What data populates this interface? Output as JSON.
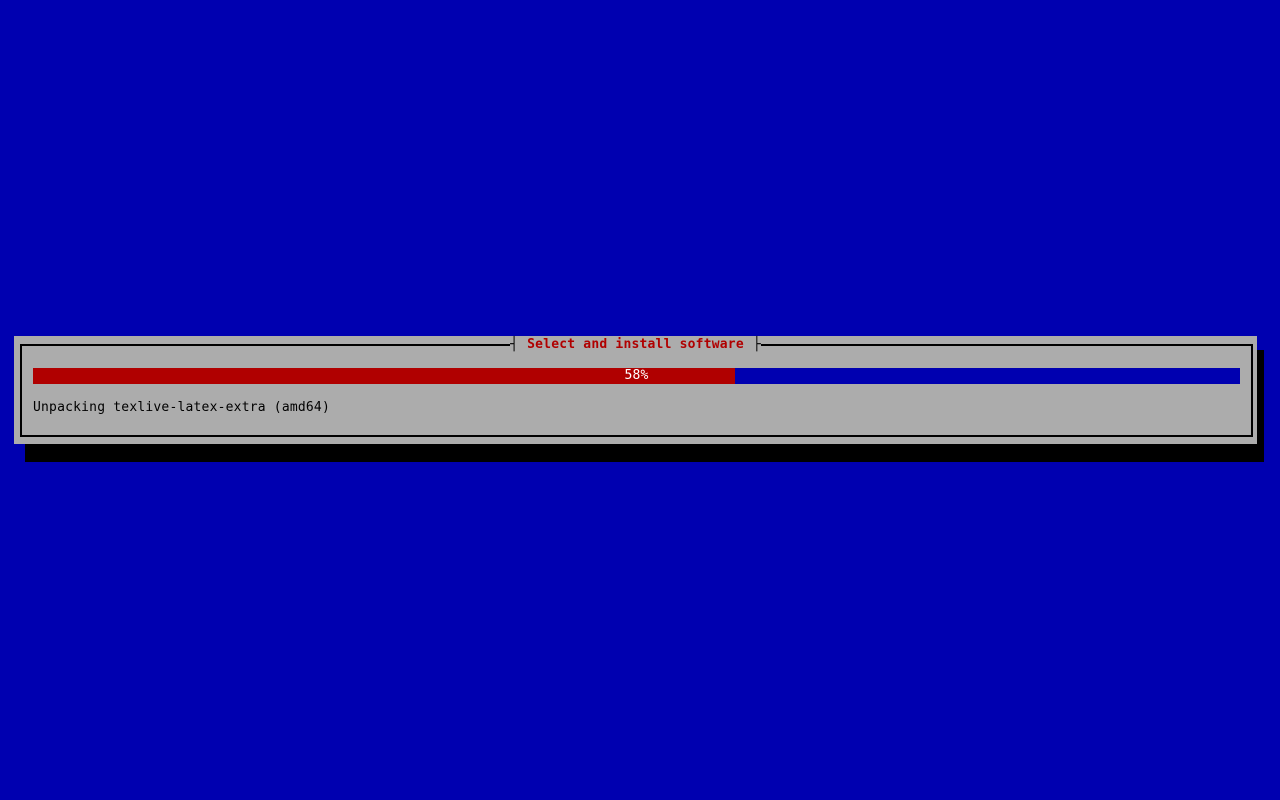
{
  "screen": {
    "background_color": "#0000B0"
  },
  "dialog": {
    "title": "Select and install software",
    "title_color": "#B00000",
    "tick_left": "┤",
    "tick_right": "├",
    "background_color": "#ACACAC",
    "border_color": "#000000",
    "shadow_color": "#000000",
    "progress": {
      "percent": 58.2,
      "label": "58%",
      "fill_color": "#B00000",
      "empty_color": "#0000B0",
      "label_color": "#FFFFFF"
    },
    "status_text": "Unpacking texlive-latex-extra (amd64)",
    "status_color": "#000000"
  }
}
